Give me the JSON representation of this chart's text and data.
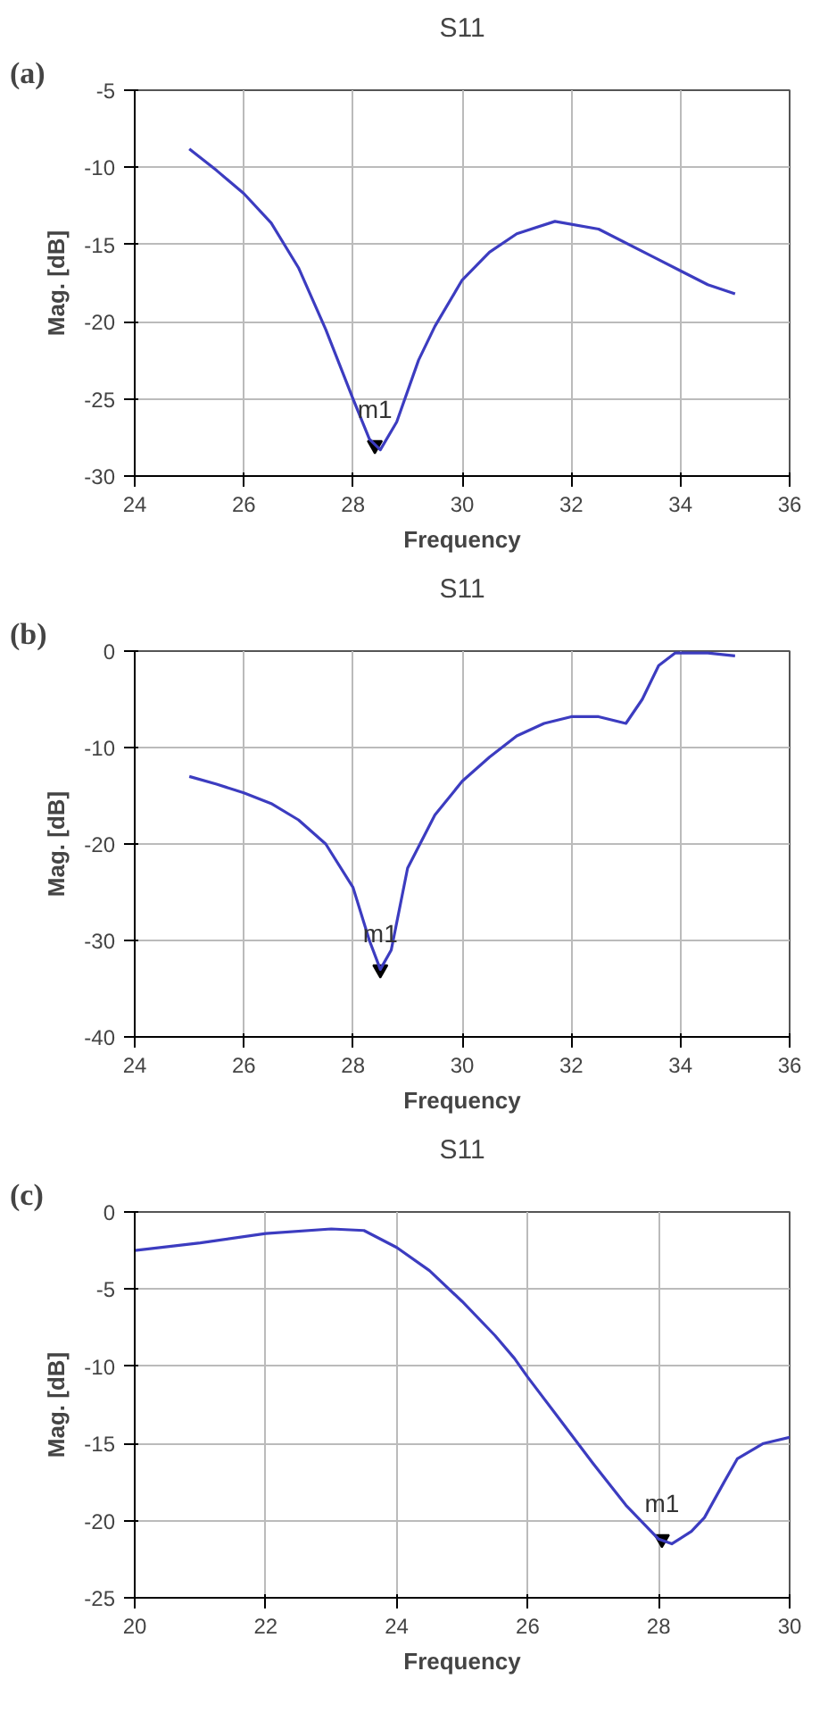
{
  "chart_data": [
    {
      "type": "line",
      "title": "S11",
      "xlabel": "Frequency",
      "ylabel": "Mag. [dB]",
      "xlim": [
        24,
        36
      ],
      "ylim": [
        -30,
        -5
      ],
      "xticks": [
        24,
        26,
        28,
        30,
        32,
        34,
        36
      ],
      "yticks": [
        -30,
        -25,
        -20,
        -15,
        -10,
        -5
      ],
      "grid": true,
      "annotations": [
        "(a)",
        {
          "text": "m1",
          "x": 28.4,
          "y": -28
        }
      ],
      "series": [
        {
          "color": "#3c3cc0",
          "x": [
            25,
            25.5,
            26,
            26.5,
            27,
            27.5,
            28,
            28.3,
            28.5,
            28.8,
            29.2,
            29.5,
            30,
            30.5,
            31,
            31.7,
            32.5,
            33.5,
            34.5,
            35
          ],
          "values": [
            -8.8,
            -10.2,
            -11.7,
            -13.6,
            -16.5,
            -20.5,
            -25,
            -27.6,
            -28.3,
            -26.5,
            -22.5,
            -20.3,
            -17.3,
            -15.5,
            -14.3,
            -13.5,
            -14,
            -15.8,
            -17.6,
            -18.2
          ]
        }
      ]
    },
    {
      "type": "line",
      "title": "S11",
      "xlabel": "Frequency",
      "ylabel": "Mag. [dB]",
      "xlim": [
        24,
        36
      ],
      "ylim": [
        -40,
        0
      ],
      "xticks": [
        24,
        26,
        28,
        30,
        32,
        34,
        36
      ],
      "yticks": [
        -40,
        -30,
        -20,
        -10,
        0
      ],
      "grid": true,
      "annotations": [
        "(b)",
        {
          "text": "m1",
          "x": 28.5,
          "y": -33
        }
      ],
      "series": [
        {
          "color": "#3c3cc0",
          "x": [
            25,
            25.5,
            26,
            26.5,
            27,
            27.5,
            28,
            28.3,
            28.5,
            28.7,
            29,
            29.5,
            30,
            30.5,
            31,
            31.5,
            32,
            32.5,
            33,
            33.3,
            33.6,
            33.9,
            34.5,
            35
          ],
          "values": [
            -13,
            -13.8,
            -14.7,
            -15.8,
            -17.5,
            -20,
            -24.5,
            -30,
            -33,
            -31,
            -22.5,
            -17,
            -13.5,
            -11,
            -8.8,
            -7.5,
            -6.8,
            -6.8,
            -7.5,
            -5,
            -1.5,
            -0.2,
            -0.2,
            -0.5
          ]
        }
      ]
    },
    {
      "type": "line",
      "title": "S11",
      "xlabel": "Frequency",
      "ylabel": "Mag. [dB]",
      "xlim": [
        20,
        30
      ],
      "ylim": [
        -25,
        0
      ],
      "xticks": [
        20,
        22,
        24,
        26,
        28,
        30
      ],
      "yticks": [
        -25,
        -20,
        -15,
        -10,
        -5,
        0
      ],
      "grid": true,
      "annotations": [
        "(c)",
        {
          "text": "m1",
          "x": 28.05,
          "y": -21.2
        }
      ],
      "series": [
        {
          "color": "#3c3cc0",
          "x": [
            20,
            21,
            22,
            23,
            23.5,
            24,
            24.5,
            25,
            25.5,
            25.8,
            26,
            26.5,
            27,
            27.5,
            28,
            28.2,
            28.5,
            28.7,
            29,
            29.2,
            29.6,
            30
          ],
          "values": [
            -2.5,
            -2,
            -1.4,
            -1.1,
            -1.2,
            -2.3,
            -3.8,
            -5.8,
            -8,
            -9.5,
            -10.7,
            -13.5,
            -16.3,
            -19,
            -21.2,
            -21.5,
            -20.7,
            -19.8,
            -17.5,
            -16,
            -15,
            -14.6
          ]
        }
      ]
    }
  ]
}
